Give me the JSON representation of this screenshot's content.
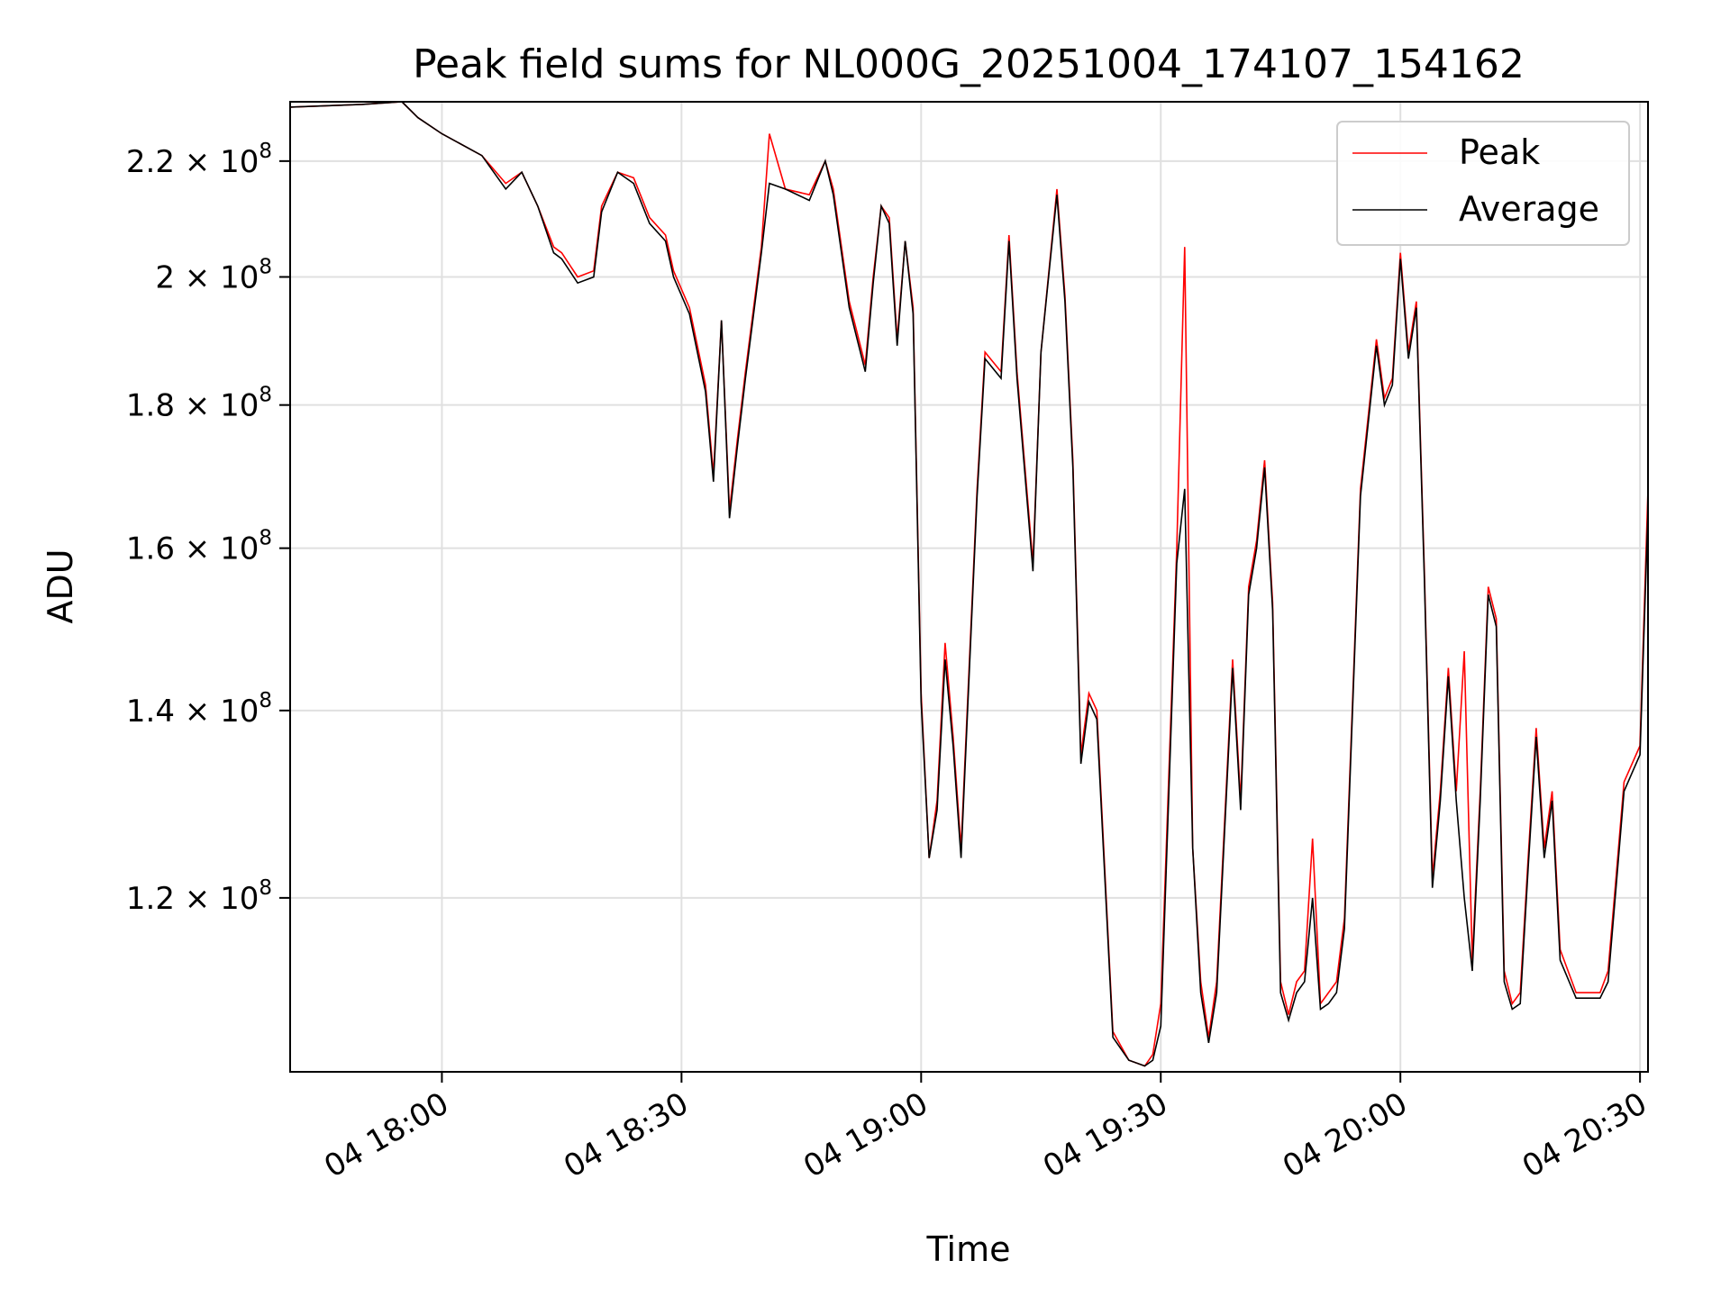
{
  "chart_data": {
    "type": "line",
    "title": "Peak field sums for NL000G_20251004_174107_154162",
    "xlabel": "Time",
    "ylabel": "ADU",
    "yscale": "log",
    "grid": true,
    "legend_position": "top-right",
    "xlim": [
      "2025-10-04 17:41",
      "2025-10-04 20:31"
    ],
    "ylim": [
      104000000,
      231000000
    ],
    "x_ticks": [
      {
        "t": "2025-10-04 18:00",
        "label": "04 18:00"
      },
      {
        "t": "2025-10-04 18:30",
        "label": "04 18:30"
      },
      {
        "t": "2025-10-04 19:00",
        "label": "04 19:00"
      },
      {
        "t": "2025-10-04 19:30",
        "label": "04 19:30"
      },
      {
        "t": "2025-10-04 20:00",
        "label": "04 20:00"
      },
      {
        "t": "2025-10-04 20:30",
        "label": "04 20:30"
      }
    ],
    "y_ticks": [
      {
        "value": 120000000,
        "mantissa": "1.2",
        "exponent": "8"
      },
      {
        "value": 140000000,
        "mantissa": "1.4",
        "exponent": "8"
      },
      {
        "value": 160000000,
        "mantissa": "1.6",
        "exponent": "8"
      },
      {
        "value": 180000000,
        "mantissa": "1.8",
        "exponent": "8"
      },
      {
        "value": 200000000,
        "mantissa": "2",
        "exponent": "8"
      },
      {
        "value": 220000000,
        "mantissa": "2.2",
        "exponent": "8"
      }
    ],
    "x": [
      "2025-10-04 17:41",
      "2025-10-04 17:50",
      "2025-10-04 17:55",
      "2025-10-04 17:57",
      "2025-10-04 18:00",
      "2025-10-04 18:05",
      "2025-10-04 18:08",
      "2025-10-04 18:10",
      "2025-10-04 18:12",
      "2025-10-04 18:14",
      "2025-10-04 18:15",
      "2025-10-04 18:17",
      "2025-10-04 18:19",
      "2025-10-04 18:20",
      "2025-10-04 18:22",
      "2025-10-04 18:24",
      "2025-10-04 18:26",
      "2025-10-04 18:28",
      "2025-10-04 18:29",
      "2025-10-04 18:31",
      "2025-10-04 18:33",
      "2025-10-04 18:34",
      "2025-10-04 18:35",
      "2025-10-04 18:36",
      "2025-10-04 18:37",
      "2025-10-04 18:38",
      "2025-10-04 18:40",
      "2025-10-04 18:41",
      "2025-10-04 18:43",
      "2025-10-04 18:46",
      "2025-10-04 18:48",
      "2025-10-04 18:49",
      "2025-10-04 18:51",
      "2025-10-04 18:53",
      "2025-10-04 18:54",
      "2025-10-04 18:55",
      "2025-10-04 18:56",
      "2025-10-04 18:57",
      "2025-10-04 18:58",
      "2025-10-04 18:59",
      "2025-10-04 19:00",
      "2025-10-04 19:01",
      "2025-10-04 19:02",
      "2025-10-04 19:03",
      "2025-10-04 19:04",
      "2025-10-04 19:05",
      "2025-10-04 19:07",
      "2025-10-04 19:08",
      "2025-10-04 19:10",
      "2025-10-04 19:11",
      "2025-10-04 19:12",
      "2025-10-04 19:14",
      "2025-10-04 19:15",
      "2025-10-04 19:17",
      "2025-10-04 19:18",
      "2025-10-04 19:19",
      "2025-10-04 19:20",
      "2025-10-04 19:21",
      "2025-10-04 19:22",
      "2025-10-04 19:24",
      "2025-10-04 19:26",
      "2025-10-04 19:28",
      "2025-10-04 19:29",
      "2025-10-04 19:30",
      "2025-10-04 19:32",
      "2025-10-04 19:33",
      "2025-10-04 19:34",
      "2025-10-04 19:35",
      "2025-10-04 19:36",
      "2025-10-04 19:37",
      "2025-10-04 19:39",
      "2025-10-04 19:40",
      "2025-10-04 19:41",
      "2025-10-04 19:42",
      "2025-10-04 19:43",
      "2025-10-04 19:44",
      "2025-10-04 19:45",
      "2025-10-04 19:46",
      "2025-10-04 19:47",
      "2025-10-04 19:48",
      "2025-10-04 19:49",
      "2025-10-04 19:50",
      "2025-10-04 19:51",
      "2025-10-04 19:52",
      "2025-10-04 19:53",
      "2025-10-04 19:55",
      "2025-10-04 19:57",
      "2025-10-04 19:58",
      "2025-10-04 19:59",
      "2025-10-04 20:00",
      "2025-10-04 20:01",
      "2025-10-04 20:02",
      "2025-10-04 20:03",
      "2025-10-04 20:04",
      "2025-10-04 20:05",
      "2025-10-04 20:06",
      "2025-10-04 20:07",
      "2025-10-04 20:08",
      "2025-10-04 20:09",
      "2025-10-04 20:10",
      "2025-10-04 20:11",
      "2025-10-04 20:12",
      "2025-10-04 20:13",
      "2025-10-04 20:14",
      "2025-10-04 20:15",
      "2025-10-04 20:16",
      "2025-10-04 20:17",
      "2025-10-04 20:18",
      "2025-10-04 20:19",
      "2025-10-04 20:20",
      "2025-10-04 20:22",
      "2025-10-04 20:24",
      "2025-10-04 20:25",
      "2025-10-04 20:26",
      "2025-10-04 20:27",
      "2025-10-04 20:28",
      "2025-10-04 20:29",
      "2025-10-04 20:30",
      "2025-10-04 20:31"
    ],
    "series": [
      {
        "name": "Peak",
        "color": "#ff0000",
        "values": [
          230000000,
          230500000,
          231000000,
          228000000,
          225000000,
          221000000,
          216000000,
          218000000,
          212000000,
          205000000,
          204000000,
          200000000,
          201000000,
          212000000,
          218000000,
          217000000,
          210000000,
          207000000,
          201000000,
          195000000,
          183000000,
          170000000,
          193000000,
          165000000,
          175000000,
          185000000,
          205000000,
          225000000,
          215000000,
          214000000,
          220000000,
          215000000,
          196000000,
          186000000,
          200000000,
          212000000,
          210000000,
          190000000,
          206000000,
          195000000,
          142000000,
          124000000,
          130000000,
          148000000,
          137000000,
          125000000,
          168000000,
          188000000,
          185000000,
          207000000,
          185000000,
          158000000,
          188000000,
          215000000,
          197000000,
          172000000,
          135000000,
          142000000,
          140000000,
          107500000,
          105000000,
          104500000,
          105500000,
          110000000,
          160000000,
          205000000,
          125000000,
          112000000,
          107000000,
          112000000,
          146000000,
          130000000,
          155000000,
          161000000,
          172000000,
          153000000,
          112000000,
          109000000,
          112000000,
          113000000,
          126000000,
          110000000,
          111000000,
          112000000,
          118000000,
          168000000,
          190000000,
          181000000,
          184000000,
          204000000,
          188000000,
          196000000,
          157000000,
          122000000,
          131000000,
          145000000,
          131000000,
          147000000,
          114000000,
          131000000,
          155000000,
          151000000,
          113000000,
          110000000,
          111000000,
          124000000,
          138000000,
          125000000,
          131000000,
          115000000,
          111000000,
          111000000,
          111000000,
          113000000,
          122000000,
          132000000,
          134000000,
          136000000,
          168000000
        ]
      },
      {
        "name": "Average",
        "color": "#000000",
        "values": [
          230000000,
          230500000,
          231000000,
          228000000,
          225000000,
          221000000,
          215000000,
          218000000,
          212000000,
          204000000,
          203000000,
          199000000,
          200000000,
          211000000,
          218000000,
          216000000,
          209000000,
          206000000,
          200000000,
          194000000,
          182000000,
          169000000,
          193000000,
          164000000,
          174000000,
          184000000,
          204000000,
          216000000,
          215000000,
          213000000,
          220000000,
          214000000,
          195000000,
          185000000,
          199000000,
          212000000,
          209000000,
          189000000,
          206000000,
          194000000,
          141000000,
          124000000,
          129000000,
          146000000,
          136000000,
          124000000,
          167000000,
          187000000,
          184000000,
          206000000,
          184000000,
          157000000,
          188000000,
          214000000,
          196000000,
          171000000,
          134000000,
          141000000,
          139000000,
          107000000,
          105000000,
          104500000,
          105000000,
          108000000,
          158000000,
          168000000,
          125000000,
          111000000,
          106500000,
          111000000,
          145000000,
          129000000,
          154000000,
          160000000,
          171000000,
          152000000,
          111000000,
          108500000,
          111000000,
          112000000,
          120000000,
          109500000,
          110000000,
          111000000,
          117000000,
          167000000,
          189000000,
          180000000,
          183000000,
          203000000,
          187000000,
          195000000,
          156000000,
          121000000,
          130000000,
          144000000,
          130000000,
          120000000,
          113000000,
          130000000,
          154000000,
          150000000,
          112000000,
          109500000,
          110000000,
          123000000,
          137000000,
          124000000,
          130000000,
          114000000,
          110500000,
          110500000,
          110500000,
          112000000,
          121000000,
          131000000,
          133000000,
          135000000,
          165000000
        ]
      }
    ]
  }
}
